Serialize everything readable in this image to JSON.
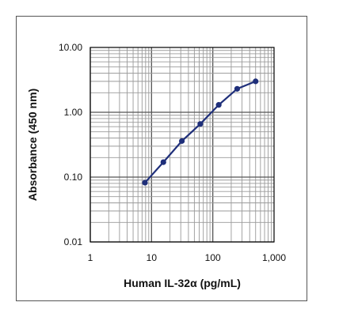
{
  "chart_data": {
    "type": "line",
    "title": "",
    "xlabel": "Human IL-32α (pg/mL)",
    "ylabel": "Absorbance (450 nm)",
    "x_scale": "log",
    "y_scale": "log",
    "xlim": [
      1,
      1000
    ],
    "ylim": [
      0.01,
      10
    ],
    "x_ticks": [
      1,
      10,
      100,
      1000
    ],
    "x_tick_labels": [
      "1",
      "10",
      "100",
      "1,000"
    ],
    "y_ticks": [
      0.01,
      0.1,
      1,
      10
    ],
    "y_tick_labels": [
      "0.01",
      "0.10",
      "1.00",
      "10.00"
    ],
    "grid": true,
    "series": [
      {
        "x": [
          7.8,
          15.6,
          31.25,
          62.5,
          125,
          250,
          500
        ],
        "y": [
          0.082,
          0.17,
          0.36,
          0.66,
          1.3,
          2.3,
          3.0
        ]
      }
    ],
    "line_color": "#1f2f7a",
    "grid_color": "#9a9a9a"
  }
}
